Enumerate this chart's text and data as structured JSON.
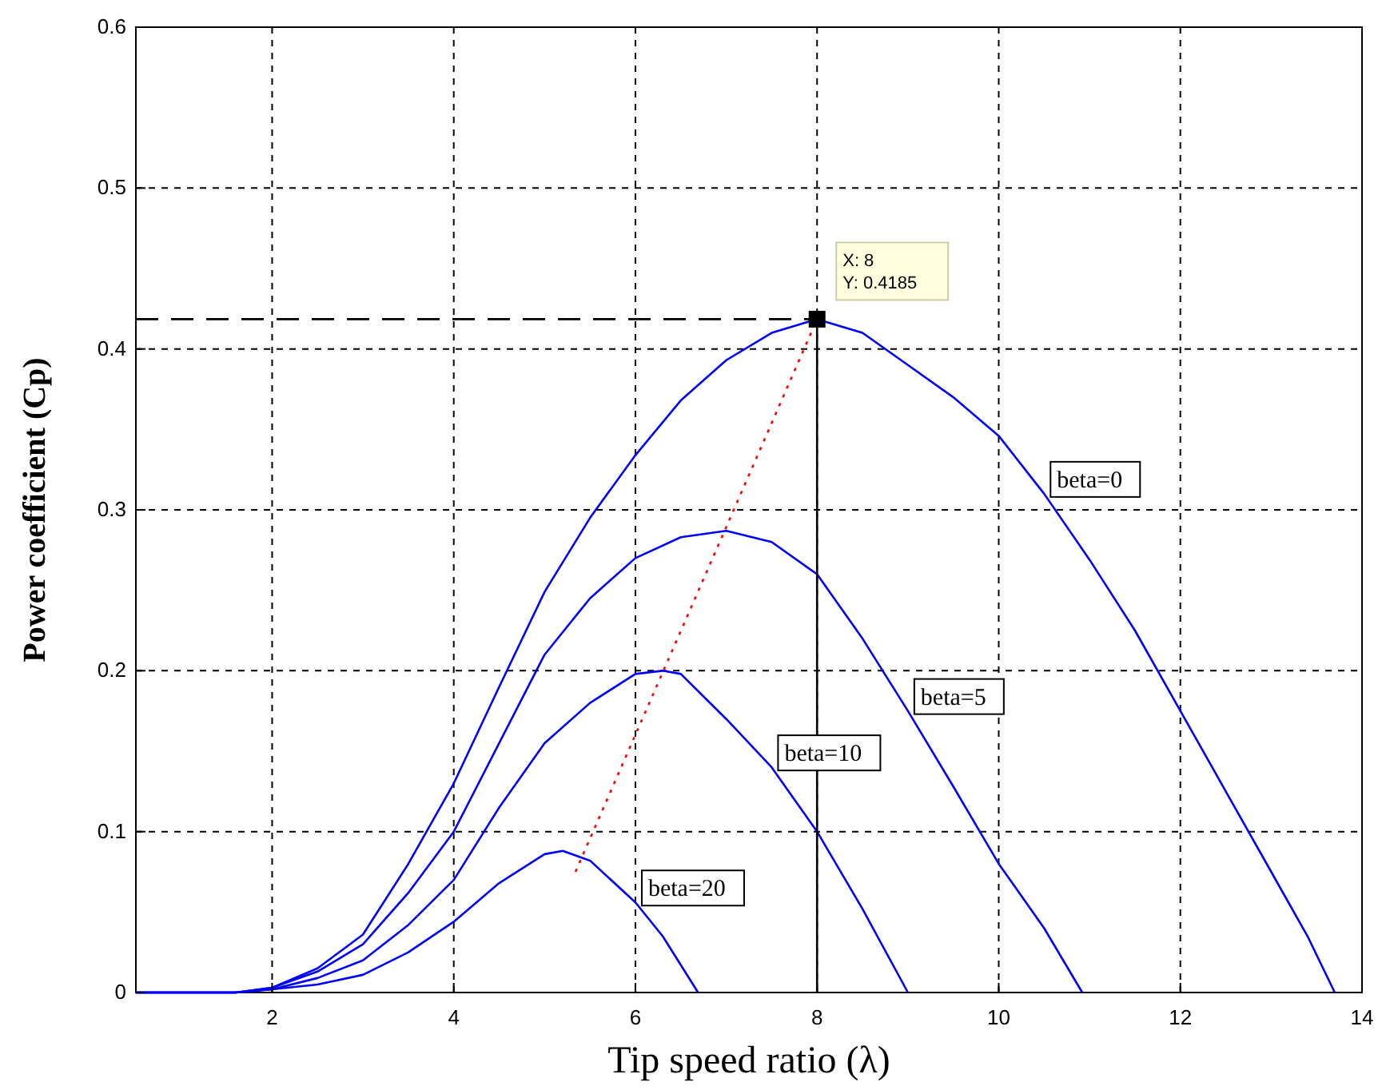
{
  "chart_data": {
    "type": "line",
    "xlabel": "Tip speed ratio (λ)",
    "ylabel": "Power coefficient (Cp)",
    "xlim": [
      0.5,
      14
    ],
    "ylim": [
      0,
      0.6
    ],
    "xticks": [
      2,
      4,
      6,
      8,
      10,
      12,
      14
    ],
    "yticks": [
      0,
      0.1,
      0.2,
      0.3,
      0.4,
      0.5,
      0.6
    ],
    "grid": true,
    "marker": "none",
    "line_style": "solid",
    "series": [
      {
        "name": "beta=0",
        "color": "#0000ff",
        "x": [
          0.5,
          1.6,
          2,
          2.5,
          3,
          3.5,
          4,
          4.5,
          5,
          5.5,
          6,
          6.5,
          7,
          7.5,
          8,
          8.5,
          9,
          9.5,
          10,
          10.5,
          11,
          11.5,
          12,
          12.5,
          13,
          13.4,
          13.7
        ],
        "values": [
          0,
          0,
          0.003,
          0.015,
          0.036,
          0.08,
          0.13,
          0.19,
          0.249,
          0.295,
          0.334,
          0.368,
          0.393,
          0.41,
          0.4185,
          0.41,
          0.39,
          0.37,
          0.346,
          0.31,
          0.269,
          0.225,
          0.175,
          0.125,
          0.075,
          0.035,
          0
        ]
      },
      {
        "name": "beta=5",
        "color": "#0000ff",
        "x": [
          0.5,
          1.6,
          2,
          2.5,
          3,
          3.5,
          4,
          4.5,
          5,
          5.5,
          6,
          6.5,
          7,
          7.5,
          8,
          8.5,
          9,
          9.5,
          10,
          10.5,
          10.92
        ],
        "values": [
          0,
          0,
          0.003,
          0.013,
          0.03,
          0.062,
          0.1,
          0.155,
          0.21,
          0.245,
          0.27,
          0.283,
          0.287,
          0.28,
          0.26,
          0.22,
          0.175,
          0.128,
          0.08,
          0.04,
          0
        ]
      },
      {
        "name": "beta=10",
        "color": "#0000ff",
        "x": [
          0.5,
          1.6,
          2,
          2.5,
          3,
          3.5,
          4,
          4.5,
          5,
          5.5,
          6,
          6.3,
          6.5,
          7,
          7.5,
          8,
          8.5,
          9
        ],
        "values": [
          0,
          0,
          0.002,
          0.009,
          0.02,
          0.042,
          0.07,
          0.115,
          0.155,
          0.18,
          0.198,
          0.2,
          0.198,
          0.17,
          0.14,
          0.1,
          0.052,
          0
        ]
      },
      {
        "name": "beta=20",
        "color": "#0000ff",
        "x": [
          0.5,
          1.6,
          2,
          2.5,
          3,
          3.5,
          4,
          4.5,
          5,
          5.2,
          5.5,
          6,
          6.3,
          6.69
        ],
        "values": [
          0,
          0,
          0.002,
          0.005,
          0.011,
          0.025,
          0.044,
          0.068,
          0.086,
          0.088,
          0.082,
          0.056,
          0.035,
          0
        ]
      },
      {
        "color": "#ff0000",
        "line_style": "dotted",
        "x": [
          5.34,
          8
        ],
        "values": [
          0.075,
          0.4185
        ]
      },
      {
        "color": "#000000",
        "line_style": "dashed",
        "x": [
          0.5,
          8
        ],
        "values": [
          0.4185,
          0.4185
        ]
      },
      {
        "color": "#000000",
        "x": [
          8,
          8
        ],
        "values": [
          0,
          0.4185
        ]
      },
      {
        "type": "scatter",
        "marker": "square",
        "color": "#000000",
        "x": [
          8
        ],
        "values": [
          0.4185
        ]
      }
    ],
    "annotations": [
      {
        "text": "X: 8\nY: 0.4185",
        "x": 8,
        "y": 0.4185
      }
    ]
  }
}
